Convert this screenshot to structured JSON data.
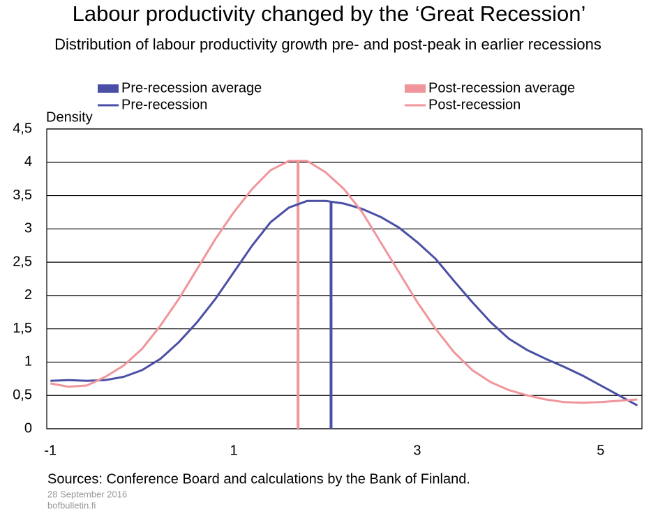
{
  "chart_data": {
    "type": "line",
    "title": "Labour productivity changed by the ‘Great Recession’",
    "subtitle": "Distribution of labour productivity growth pre- and post-peak in earlier recessions",
    "ylabel": "Density",
    "source": "Sources: Conference Board and calculations by the Bank of Finland.",
    "date": "28 September 2016",
    "website": "bofbulletin.fi",
    "x": [
      -1,
      -0.8,
      -0.6,
      -0.4,
      -0.2,
      0,
      0.2,
      0.4,
      0.6,
      0.8,
      1.0,
      1.2,
      1.4,
      1.6,
      1.8,
      2.0,
      2.2,
      2.4,
      2.6,
      2.8,
      3.0,
      3.2,
      3.4,
      3.6,
      3.8,
      4.0,
      4.2,
      4.4,
      4.6,
      4.8,
      5.0,
      5.2,
      5.4
    ],
    "averages": [
      {
        "name": "Pre-recession average",
        "color": "#4a4fa5",
        "x": 2.06,
        "value": 3.41
      },
      {
        "name": "Post-recession average",
        "color": "#f0959b",
        "x": 1.7,
        "value": 4.03
      }
    ],
    "series": [
      {
        "name": "Pre-recession",
        "color": "#4a4fa5",
        "values": [
          0.72,
          0.73,
          0.72,
          0.73,
          0.78,
          0.88,
          1.05,
          1.3,
          1.6,
          1.95,
          2.35,
          2.75,
          3.1,
          3.32,
          3.42,
          3.42,
          3.38,
          3.3,
          3.18,
          3.02,
          2.8,
          2.55,
          2.22,
          1.9,
          1.6,
          1.35,
          1.18,
          1.05,
          0.93,
          0.8,
          0.65,
          0.5,
          0.35
        ]
      },
      {
        "name": "Post-recession",
        "color": "#f0959b",
        "values": [
          0.68,
          0.63,
          0.65,
          0.78,
          0.95,
          1.2,
          1.55,
          1.95,
          2.4,
          2.85,
          3.25,
          3.6,
          3.88,
          4.02,
          4.02,
          3.85,
          3.6,
          3.25,
          2.8,
          2.35,
          1.9,
          1.5,
          1.15,
          0.88,
          0.7,
          0.58,
          0.5,
          0.44,
          0.4,
          0.39,
          0.4,
          0.42,
          0.44
        ]
      }
    ],
    "xlim": [
      -1.04,
      5.45
    ],
    "xticks": [
      -1,
      1,
      3,
      5
    ],
    "ylim": [
      0,
      4.5
    ],
    "yticks": [
      0,
      {
        "value": 0.5,
        "label": "0,5"
      },
      1,
      {
        "value": 1.5,
        "label": "1,5"
      },
      2,
      {
        "value": 2.5,
        "label": "2,5"
      },
      3,
      {
        "value": 3.5,
        "label": "3,5"
      },
      4,
      {
        "value": 4.5,
        "label": "4,5"
      }
    ],
    "grid": true
  }
}
